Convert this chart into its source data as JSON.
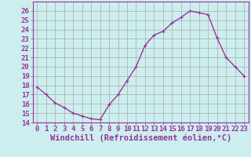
{
  "x": [
    0,
    1,
    2,
    3,
    4,
    5,
    6,
    7,
    8,
    9,
    10,
    11,
    12,
    13,
    14,
    15,
    16,
    17,
    18,
    19,
    20,
    21,
    22,
    23
  ],
  "y": [
    17.8,
    17.0,
    16.1,
    15.6,
    15.0,
    14.7,
    14.4,
    14.3,
    15.9,
    17.0,
    18.5,
    20.0,
    22.3,
    23.4,
    23.8,
    24.7,
    25.3,
    26.0,
    25.8,
    25.6,
    23.1,
    21.0,
    20.0,
    19.0
  ],
  "ylim": [
    14,
    27
  ],
  "xlim": [
    -0.5,
    23.5
  ],
  "yticks": [
    14,
    15,
    16,
    17,
    18,
    19,
    20,
    21,
    22,
    23,
    24,
    25,
    26
  ],
  "xticks": [
    0,
    1,
    2,
    3,
    4,
    5,
    6,
    7,
    8,
    9,
    10,
    11,
    12,
    13,
    14,
    15,
    16,
    17,
    18,
    19,
    20,
    21,
    22,
    23
  ],
  "xlabel": "Windchill (Refroidissement éolien,°C)",
  "line_color": "#993399",
  "marker": "+",
  "bg_color": "#cceeee",
  "grid_color": "#aaaaaa",
  "xlabel_fontsize": 7.5,
  "tick_fontsize": 6.5,
  "linewidth": 1.0
}
